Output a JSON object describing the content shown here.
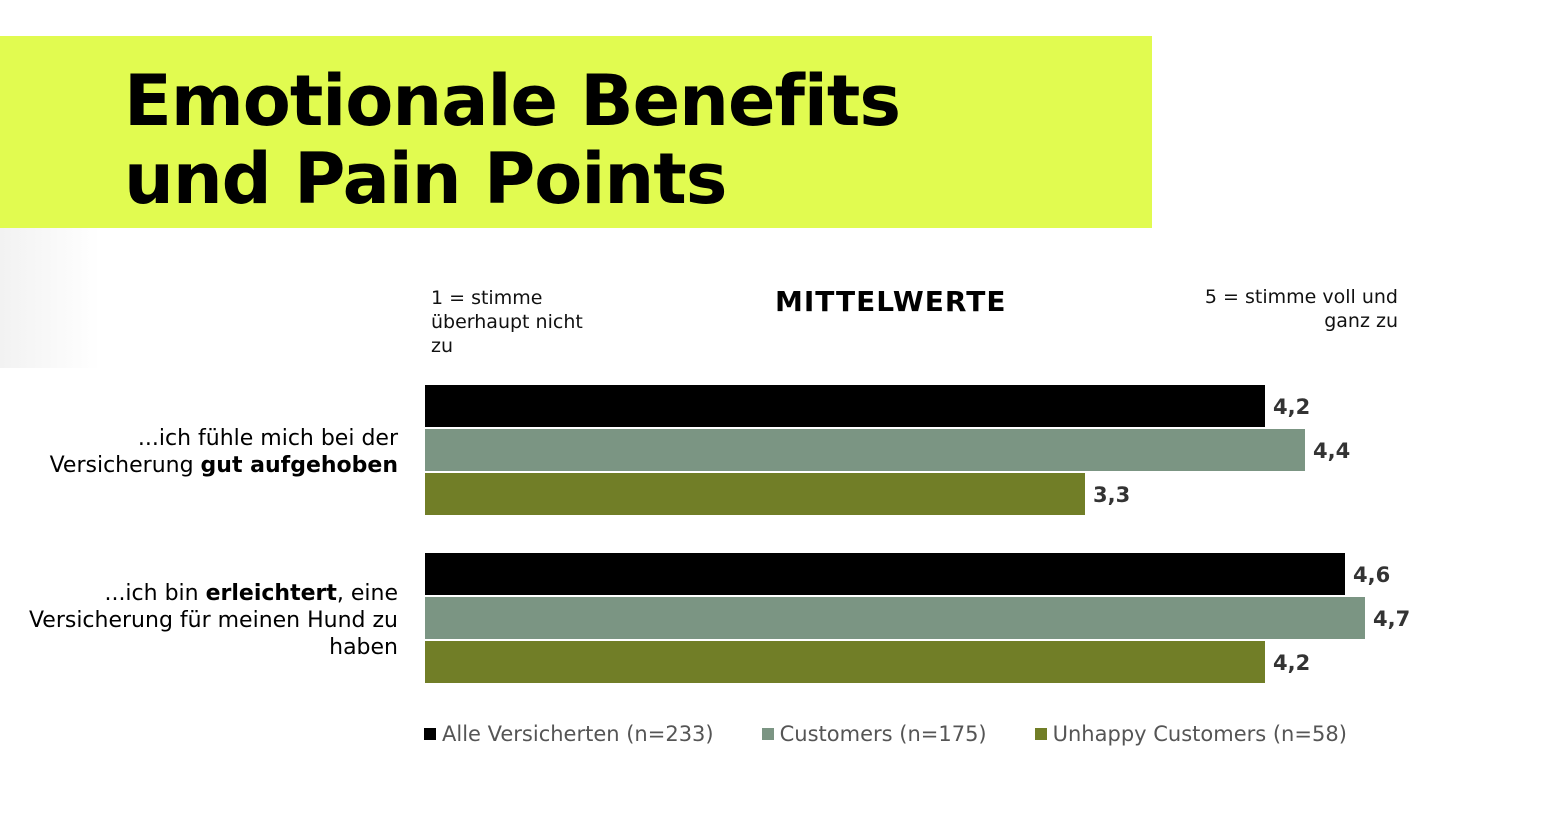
{
  "header": {
    "title_line1": "Emotionale Benefits",
    "title_line2": "und Pain Points",
    "accent_color": "#e1fb50"
  },
  "chart_data": {
    "type": "bar",
    "orientation": "horizontal",
    "title": "MITTELWERTE",
    "scale_low_label": "1 = stimme überhaupt nicht zu",
    "scale_high_label": "5 = stimme voll und ganz zu",
    "categories": [
      {
        "prefix": "...ich fühle mich bei der Versicherung ",
        "bold": "gut aufgehoben",
        "suffix": ""
      },
      {
        "prefix": "...ich bin ",
        "bold": "erleichtert",
        "suffix": ", eine Versicherung für meinen Hund zu haben"
      }
    ],
    "series": [
      {
        "name": "Alle Versicherten (n=233)",
        "color": "#000000",
        "values": [
          4.2,
          4.6
        ],
        "labels": [
          "4,2",
          "4,6"
        ]
      },
      {
        "name": "Customers (n=175)",
        "color": "#7b9583",
        "values": [
          4.4,
          4.7
        ],
        "labels": [
          "4,4",
          "4,7"
        ]
      },
      {
        "name": "Unhappy Customers (n=58)",
        "color": "#717e27",
        "values": [
          3.3,
          4.2
        ],
        "labels": [
          "3,3",
          "4,2"
        ]
      }
    ],
    "xlim": [
      0,
      5
    ],
    "legend": "bottom"
  }
}
